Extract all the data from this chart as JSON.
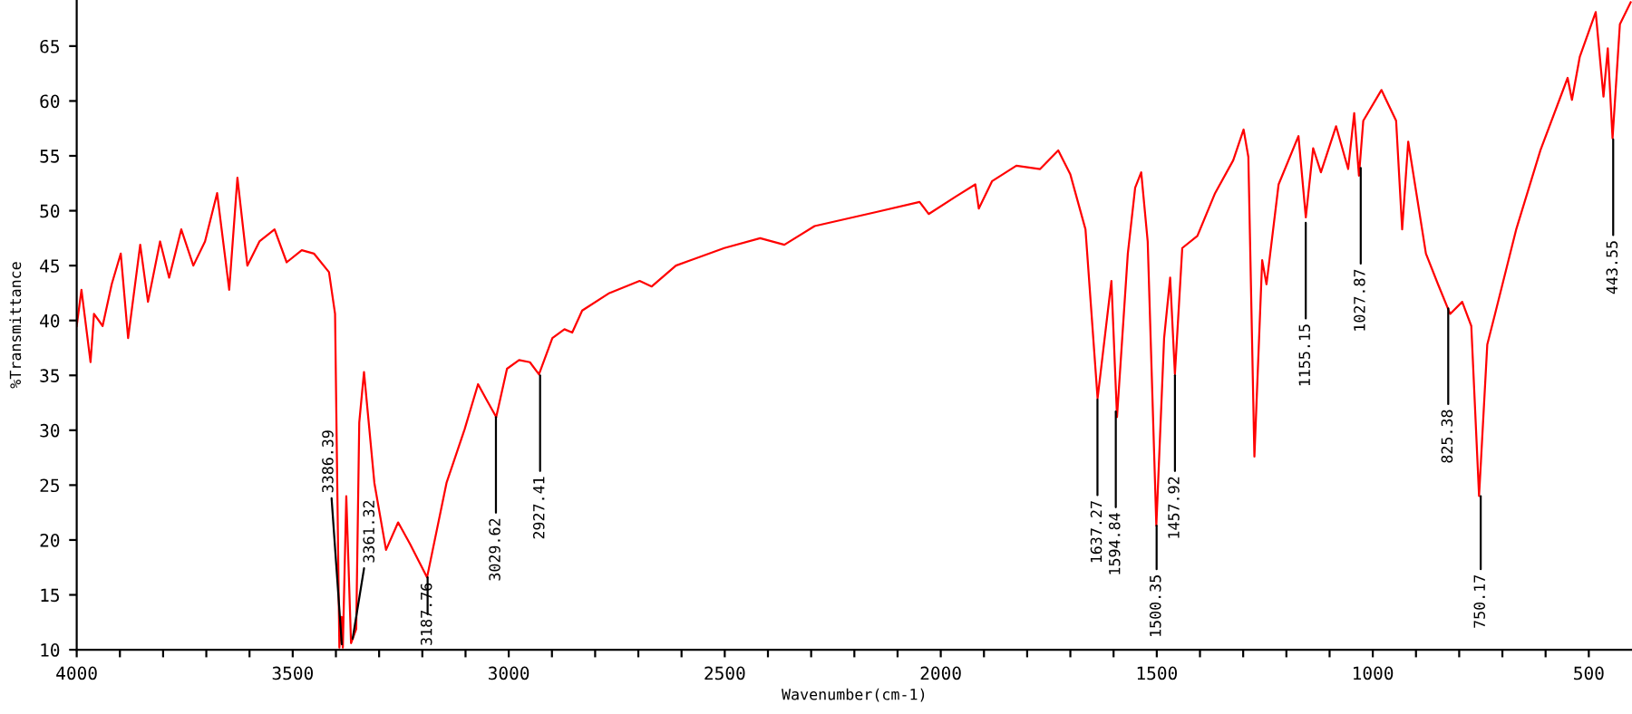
{
  "chart_data": {
    "type": "line",
    "xlabel": "Wavenumber(cm-1)",
    "ylabel": "%Transmittance",
    "xlim": [
      4000,
      400
    ],
    "ylim": [
      10,
      69.2
    ],
    "xticks": [
      4000,
      {
        "value": 3900,
        "label": null
      },
      {
        "value": 3800,
        "label": null
      },
      {
        "value": 3700,
        "label": null
      },
      {
        "value": 3600,
        "label": null
      },
      3500,
      {
        "value": 3400,
        "label": null
      },
      {
        "value": 3300,
        "label": null
      },
      {
        "value": 3200,
        "label": null
      },
      {
        "value": 3100,
        "label": null
      },
      3000,
      {
        "value": 2900,
        "label": null
      },
      {
        "value": 2800,
        "label": null
      },
      {
        "value": 2700,
        "label": null
      },
      {
        "value": 2600,
        "label": null
      },
      2500,
      {
        "value": 2400,
        "label": null
      },
      {
        "value": 2300,
        "label": null
      },
      {
        "value": 2200,
        "label": null
      },
      {
        "value": 2100,
        "label": null
      },
      2000,
      {
        "value": 1900,
        "label": null
      },
      {
        "value": 1800,
        "label": null
      },
      {
        "value": 1700,
        "label": null
      },
      {
        "value": 1600,
        "label": null
      },
      1500,
      {
        "value": 1400,
        "label": null
      },
      {
        "value": 1300,
        "label": null
      },
      {
        "value": 1200,
        "label": null
      },
      {
        "value": 1100,
        "label": null
      },
      1000,
      {
        "value": 900,
        "label": null
      },
      {
        "value": 800,
        "label": null
      },
      {
        "value": 700,
        "label": null
      },
      {
        "value": 600,
        "label": null
      },
      500
    ],
    "yticks": [
      10,
      15,
      20,
      25,
      30,
      35,
      40,
      45,
      50,
      55,
      60,
      65
    ],
    "grid": false,
    "legend": false,
    "marker": "none",
    "line_style": "solid",
    "series": [
      {
        "color": "#ff0000",
        "x": [
          4000,
          3989,
          3968,
          3960,
          3940,
          3919,
          3898,
          3881,
          3853,
          3835,
          3807,
          3786,
          3758,
          3730,
          3703,
          3675,
          3647,
          3628,
          3605,
          3577,
          3542,
          3514,
          3479,
          3451,
          3416,
          3402,
          3392,
          3387,
          3384,
          3376,
          3365,
          3353,
          3346,
          3335,
          3311,
          3284,
          3256,
          3228,
          3189,
          3144,
          3102,
          3071,
          3053,
          3029,
          3004,
          2976,
          2951,
          2930,
          2899,
          2871,
          2853,
          2830,
          2767,
          2697,
          2669,
          2613,
          2501,
          2418,
          2362,
          2292,
          2147,
          2049,
          2028,
          1965,
          1920,
          1912,
          1881,
          1825,
          1770,
          1728,
          1700,
          1665,
          1637,
          1605,
          1592,
          1567,
          1550,
          1536,
          1521,
          1501,
          1483,
          1469,
          1458,
          1441,
          1406,
          1365,
          1323,
          1299,
          1288,
          1274,
          1256,
          1246,
          1218,
          1172,
          1155,
          1138,
          1120,
          1085,
          1057,
          1043,
          1032,
          1022,
          980,
          946,
          932,
          918,
          877,
          849,
          821,
          793,
          772,
          754,
          735,
          717,
          668,
          612,
          549,
          539,
          521,
          484,
          466,
          456,
          445,
          428,
          403
        ],
        "values": [
          39.5,
          42.8,
          36.2,
          40.6,
          39.5,
          43.3,
          46.1,
          38.4,
          46.9,
          41.7,
          47.2,
          43.9,
          48.3,
          45.0,
          47.2,
          51.6,
          42.8,
          53.0,
          45.0,
          47.2,
          48.3,
          45.3,
          46.4,
          46.1,
          44.4,
          40.6,
          10.2,
          13.0,
          10.2,
          24.0,
          10.6,
          11.9,
          30.7,
          35.3,
          25.2,
          19.1,
          21.6,
          19.6,
          16.6,
          25.2,
          30.1,
          34.2,
          32.9,
          31.2,
          35.6,
          36.4,
          36.2,
          35.1,
          38.4,
          39.2,
          38.9,
          40.9,
          42.5,
          43.6,
          43.1,
          45.0,
          46.6,
          47.5,
          46.9,
          48.6,
          49.9,
          50.8,
          49.7,
          51.3,
          52.4,
          50.2,
          52.7,
          54.1,
          53.8,
          55.5,
          53.3,
          48.3,
          32.9,
          43.6,
          31.2,
          46.1,
          52.1,
          53.5,
          47.2,
          21.3,
          38.4,
          43.9,
          35.1,
          46.6,
          47.7,
          51.6,
          54.6,
          57.4,
          54.9,
          27.6,
          45.5,
          43.3,
          52.4,
          56.8,
          49.4,
          55.7,
          53.5,
          57.7,
          53.8,
          58.9,
          53.2,
          58.2,
          61.0,
          58.2,
          48.3,
          56.3,
          46.1,
          43.3,
          40.6,
          41.7,
          39.5,
          24.0,
          37.8,
          40.6,
          48.3,
          55.5,
          62.1,
          60.1,
          64.0,
          68.1,
          60.4,
          64.8,
          56.6,
          67.0,
          69.0
        ]
      }
    ],
    "annotations": [
      {
        "text": "3386.39",
        "x": 3386.39,
        "y": 10.5
      },
      {
        "text": "3361.32",
        "x": 3361.32,
        "y": 11
      },
      {
        "text": "3187.76",
        "x": 3187.76,
        "y": 16.6
      },
      {
        "text": "3029.62",
        "x": 3029.62,
        "y": 31.2
      },
      {
        "text": "2927.41",
        "x": 2927.41,
        "y": 35
      },
      {
        "text": "1637.27",
        "x": 1637.27,
        "y": 32.8
      },
      {
        "text": "1594.84",
        "x": 1594.84,
        "y": 31.7
      },
      {
        "text": "1500.35",
        "x": 1500.35,
        "y": 21.3
      },
      {
        "text": "1457.92",
        "x": 1457.92,
        "y": 35
      },
      {
        "text": "1155.15",
        "x": 1155.15,
        "y": 48.9
      },
      {
        "text": "1027.87",
        "x": 1027.87,
        "y": 53.9
      },
      {
        "text": "825.38",
        "x": 825.38,
        "y": 41.1
      },
      {
        "text": "750.17",
        "x": 750.17,
        "y": 24
      },
      {
        "text": "443.55",
        "x": 443.55,
        "y": 56.5
      }
    ]
  }
}
